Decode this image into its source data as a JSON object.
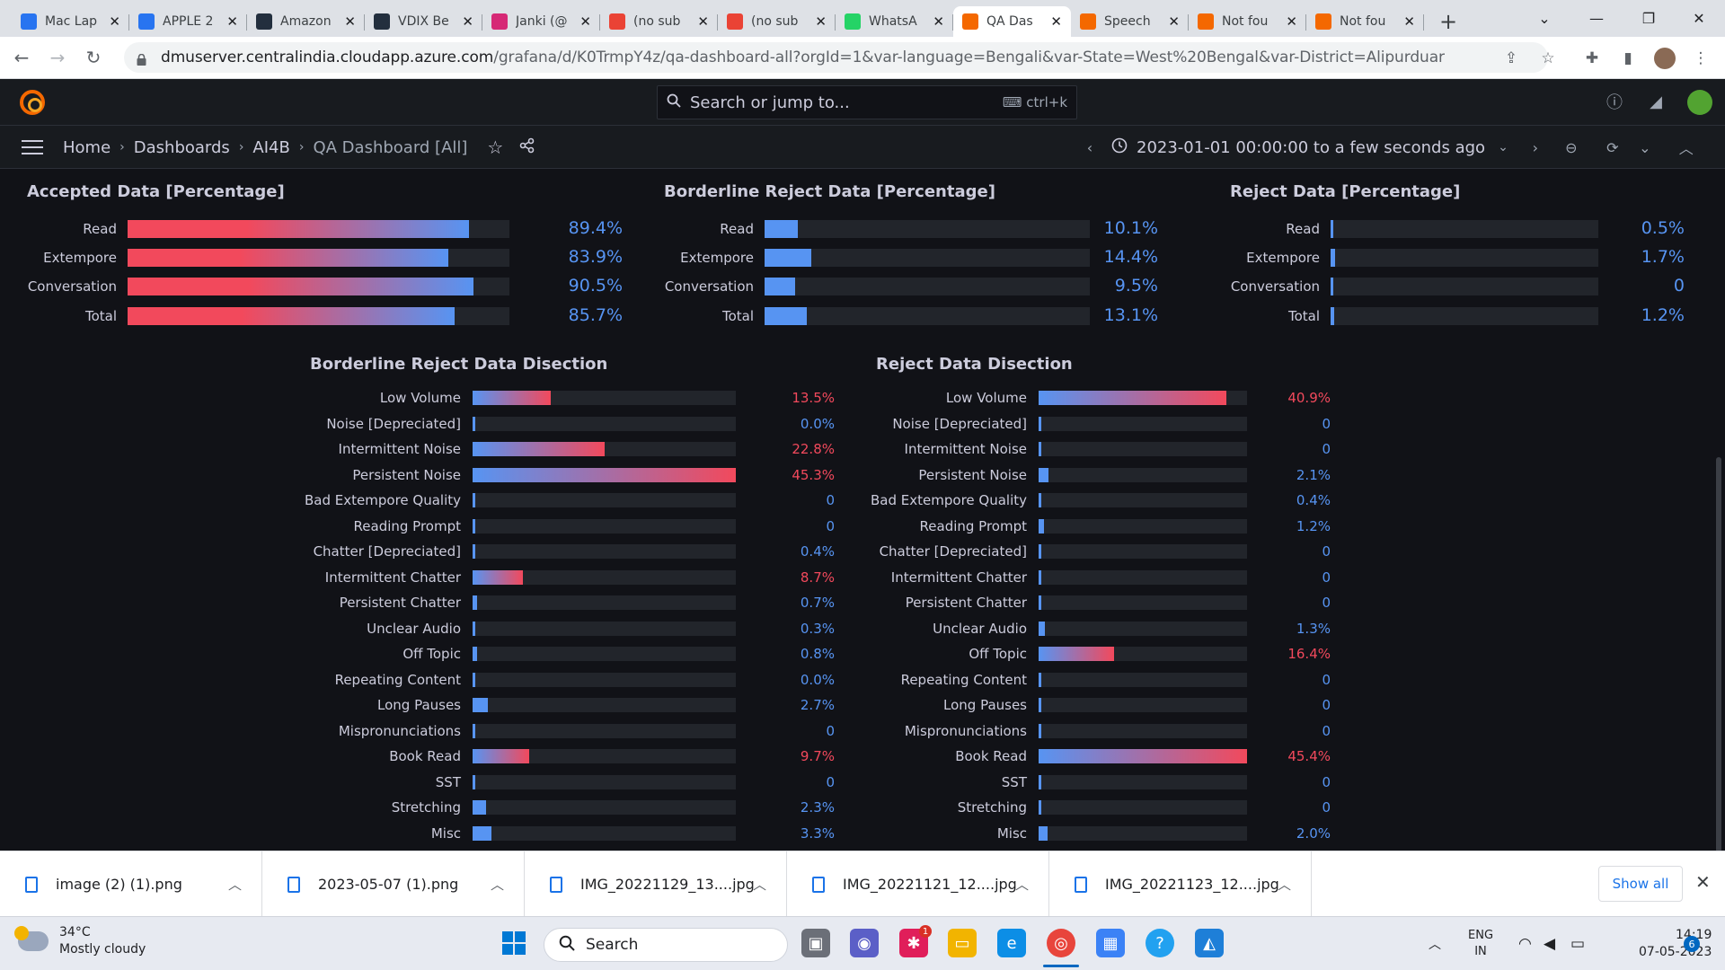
{
  "browser": {
    "tabs": [
      {
        "label": "Mac Lap",
        "icon": "flipkart-icon",
        "color": "#2874f0"
      },
      {
        "label": "APPLE 2",
        "icon": "flipkart-icon",
        "color": "#2874f0"
      },
      {
        "label": "Amazon",
        "icon": "amazon-icon",
        "color": "#232f3e"
      },
      {
        "label": "VDIX Be",
        "icon": "amazon-icon",
        "color": "#232f3e"
      },
      {
        "label": "Janki (@",
        "icon": "instagram-icon",
        "color": "#d62976"
      },
      {
        "label": "(no sub",
        "icon": "gmail-icon",
        "color": "#ea4335"
      },
      {
        "label": "(no sub",
        "icon": "gmail-icon",
        "color": "#ea4335"
      },
      {
        "label": "WhatsA",
        "icon": "whatsapp-icon",
        "color": "#25d366"
      },
      {
        "label": "QA Das",
        "icon": "grafana-icon",
        "color": "#f46800",
        "active": true
      },
      {
        "label": "Speech",
        "icon": "grafana-icon",
        "color": "#f46800"
      },
      {
        "label": "Not fou",
        "icon": "grafana-icon",
        "color": "#f46800"
      },
      {
        "label": "Not fou",
        "icon": "grafana-icon",
        "color": "#f46800"
      }
    ],
    "url_host": "dmuserver.centralindia.cloudapp.azure.com",
    "url_path": "/grafana/d/K0TrmpY4z/qa-dashboard-all?orgId=1&var-language=Bengali&var-State=West%20Bengal&var-District=Alipurduar"
  },
  "grafana": {
    "search_placeholder": "Search or jump to...",
    "search_shortcut": "ctrl+k",
    "breadcrumb": [
      "Home",
      "Dashboards",
      "AI4B",
      "QA Dashboard [All]"
    ],
    "time_range": "2023-01-01 00:00:00 to a few seconds ago"
  },
  "colors": {
    "red": "#f2495c",
    "blue": "#5794f2",
    "track": "#22252b"
  },
  "gauges": [
    {
      "title": "Accepted Data [Percentage]",
      "style": "gradient-red-blue",
      "rows": [
        {
          "label": "Read",
          "value": 89.4,
          "text": "89.4%"
        },
        {
          "label": "Extempore",
          "value": 83.9,
          "text": "83.9%"
        },
        {
          "label": "Conversation",
          "value": 90.5,
          "text": "90.5%"
        },
        {
          "label": "Total",
          "value": 85.7,
          "text": "85.7%"
        }
      ]
    },
    {
      "title": "Borderline Reject Data [Percentage]",
      "style": "blue",
      "rows": [
        {
          "label": "Read",
          "value": 10.1,
          "text": "10.1%"
        },
        {
          "label": "Extempore",
          "value": 14.4,
          "text": "14.4%"
        },
        {
          "label": "Conversation",
          "value": 9.5,
          "text": "9.5%"
        },
        {
          "label": "Total",
          "value": 13.1,
          "text": "13.1%"
        }
      ]
    },
    {
      "title": "Reject Data [Percentage]",
      "style": "blue",
      "rows": [
        {
          "label": "Read",
          "value": 0.5,
          "text": "0.5%"
        },
        {
          "label": "Extempore",
          "value": 1.7,
          "text": "1.7%"
        },
        {
          "label": "Conversation",
          "value": 0,
          "text": "0"
        },
        {
          "label": "Total",
          "value": 1.2,
          "text": "1.2%"
        }
      ]
    }
  ],
  "dissections": [
    {
      "title": "Borderline Reject Data Disection",
      "max": 45.3,
      "rows": [
        {
          "label": "Low Volume",
          "value": 13.5,
          "text": "13.5%"
        },
        {
          "label": "Noise [Depreciated]",
          "value": 0,
          "text": "0.0%"
        },
        {
          "label": "Intermittent Noise",
          "value": 22.8,
          "text": "22.8%"
        },
        {
          "label": "Persistent Noise",
          "value": 45.3,
          "text": "45.3%"
        },
        {
          "label": "Bad Extempore Quality",
          "value": 0,
          "text": "0"
        },
        {
          "label": "Reading Prompt",
          "value": 0,
          "text": "0"
        },
        {
          "label": "Chatter [Depreciated]",
          "value": 0.4,
          "text": "0.4%"
        },
        {
          "label": "Intermittent Chatter",
          "value": 8.7,
          "text": "8.7%"
        },
        {
          "label": "Persistent Chatter",
          "value": 0.7,
          "text": "0.7%"
        },
        {
          "label": "Unclear Audio",
          "value": 0.3,
          "text": "0.3%"
        },
        {
          "label": "Off Topic",
          "value": 0.8,
          "text": "0.8%"
        },
        {
          "label": "Repeating Content",
          "value": 0,
          "text": "0.0%"
        },
        {
          "label": "Long Pauses",
          "value": 2.7,
          "text": "2.7%"
        },
        {
          "label": "Mispronunciations",
          "value": 0,
          "text": "0"
        },
        {
          "label": "Book Read",
          "value": 9.7,
          "text": "9.7%"
        },
        {
          "label": "SST",
          "value": 0,
          "text": "0"
        },
        {
          "label": "Stretching",
          "value": 2.3,
          "text": "2.3%"
        },
        {
          "label": "Misc",
          "value": 3.3,
          "text": "3.3%"
        }
      ]
    },
    {
      "title": "Reject Data Disection",
      "max": 45.4,
      "rows": [
        {
          "label": "Low Volume",
          "value": 40.9,
          "text": "40.9%"
        },
        {
          "label": "Noise [Depreciated]",
          "value": 0,
          "text": "0"
        },
        {
          "label": "Intermittent Noise",
          "value": 0,
          "text": "0"
        },
        {
          "label": "Persistent Noise",
          "value": 2.1,
          "text": "2.1%"
        },
        {
          "label": "Bad Extempore Quality",
          "value": 0.4,
          "text": "0.4%"
        },
        {
          "label": "Reading Prompt",
          "value": 1.2,
          "text": "1.2%"
        },
        {
          "label": "Chatter [Depreciated]",
          "value": 0,
          "text": "0"
        },
        {
          "label": "Intermittent Chatter",
          "value": 0,
          "text": "0"
        },
        {
          "label": "Persistent Chatter",
          "value": 0,
          "text": "0"
        },
        {
          "label": "Unclear Audio",
          "value": 1.3,
          "text": "1.3%"
        },
        {
          "label": "Off Topic",
          "value": 16.4,
          "text": "16.4%"
        },
        {
          "label": "Repeating Content",
          "value": 0,
          "text": "0"
        },
        {
          "label": "Long Pauses",
          "value": 0,
          "text": "0"
        },
        {
          "label": "Mispronunciations",
          "value": 0,
          "text": "0"
        },
        {
          "label": "Book Read",
          "value": 45.4,
          "text": "45.4%"
        },
        {
          "label": "SST",
          "value": 0,
          "text": "0"
        },
        {
          "label": "Stretching",
          "value": 0,
          "text": "0"
        },
        {
          "label": "Misc",
          "value": 2.0,
          "text": "2.0%"
        }
      ]
    }
  ],
  "downloads": {
    "items": [
      "image (2) (1).png",
      "2023-05-07 (1).png",
      "IMG_20221129_13....jpg",
      "IMG_20221121_12....jpg",
      "IMG_20221123_12....jpg"
    ],
    "show_all": "Show all"
  },
  "taskbar": {
    "temperature": "34°C",
    "weather": "Mostly cloudy",
    "search": "Search",
    "lang1": "ENG",
    "lang2": "IN",
    "time": "14:19",
    "date": "07-05-2023",
    "notifications": "6",
    "slack_badge": "1"
  }
}
